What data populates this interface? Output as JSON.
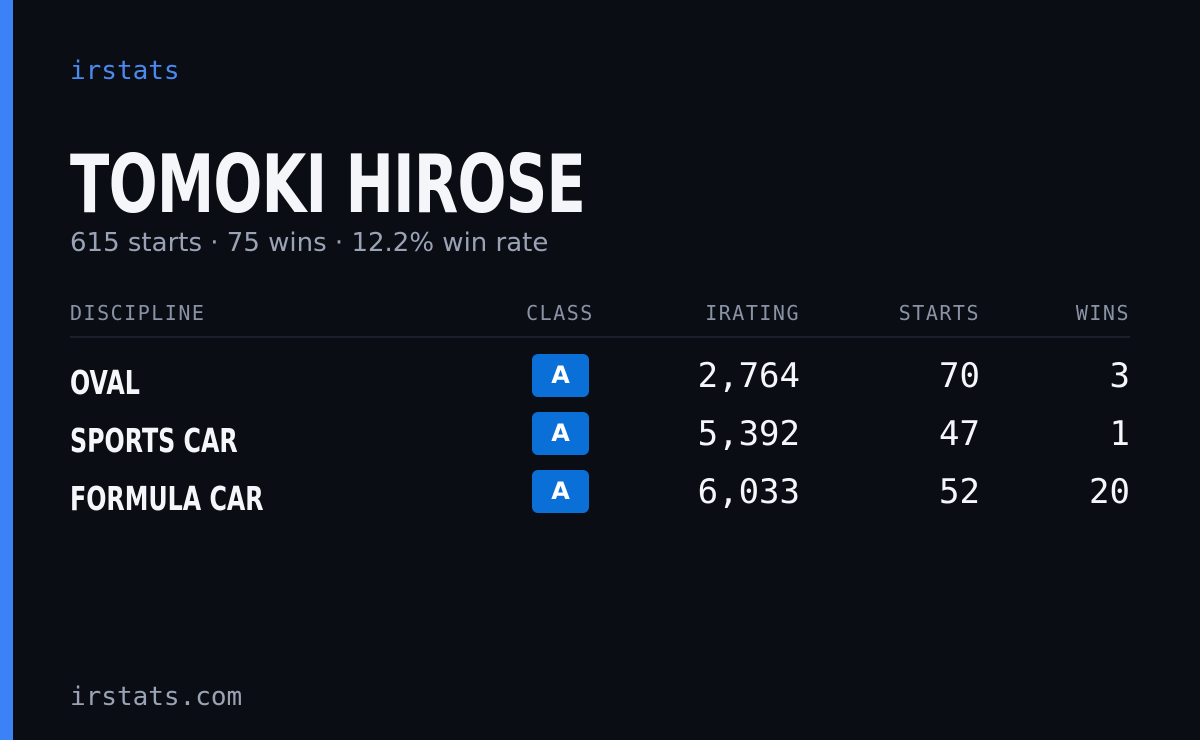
{
  "brand": "irstats",
  "driver": {
    "name": "TOMOKI HIROSE",
    "summary": "615 starts · 75 wins · 12.2% win rate"
  },
  "table": {
    "headers": [
      "DISCIPLINE",
      "CLASS",
      "IRATING",
      "STARTS",
      "WINS"
    ],
    "rows": [
      [
        "OVAL",
        "A",
        "2,764",
        "70",
        "3"
      ],
      [
        "SPORTS CAR",
        "A",
        "5,392",
        "47",
        "1"
      ],
      [
        "FORMULA CAR",
        "A",
        "6,033",
        "52",
        "20"
      ]
    ]
  },
  "footer": "irstats.com"
}
